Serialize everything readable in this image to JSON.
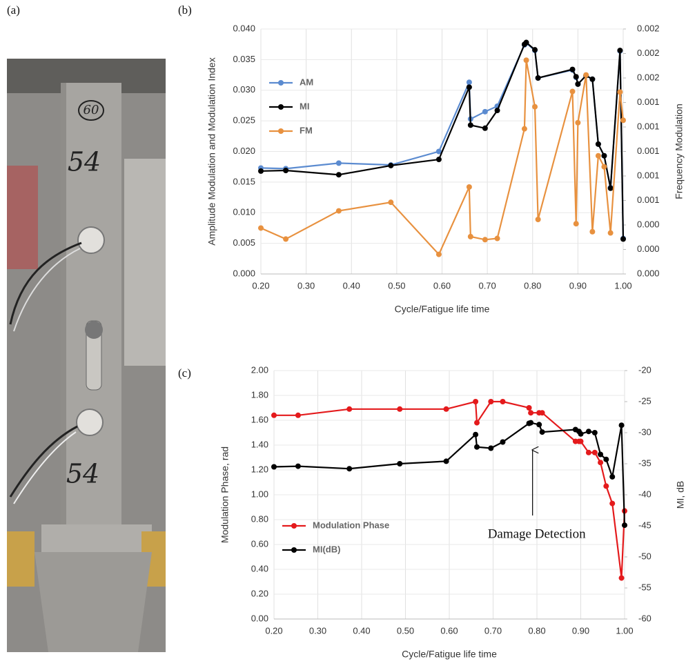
{
  "figure": {
    "panel_labels": [
      "(a)",
      "(b)",
      "(c)"
    ],
    "photo_labels": [
      "60",
      "54",
      "54"
    ]
  },
  "chart_data": [
    {
      "type": "line",
      "x_label": "Cycle/Fatigue life time",
      "y_label": "Amplitude Modulation and Modulation Index",
      "y2_label": "Frequency Modulation",
      "x": [
        0.2,
        0.255,
        0.372,
        0.487,
        0.593,
        0.66,
        0.663,
        0.695,
        0.722,
        0.782,
        0.786,
        0.805,
        0.812,
        0.888,
        0.896,
        0.9,
        0.918,
        0.932,
        0.945,
        0.958,
        0.972,
        0.993,
        1.0
      ],
      "series": [
        {
          "name": "AM",
          "color": "#5b8bd0",
          "values": [
            0.0173,
            0.0172,
            0.0181,
            0.0178,
            0.02,
            0.0313,
            0.0253,
            0.0265,
            0.0274,
            0.0374,
            0.0377,
            0.0365,
            0.032,
            0.0333,
            0.0321,
            0.031,
            0.0324,
            0.0318,
            0.0212,
            0.0193,
            0.0141,
            0.0364,
            0.0058
          ]
        },
        {
          "name": "MI",
          "color": "#000000",
          "values": [
            0.0168,
            0.0169,
            0.0162,
            0.0177,
            0.0187,
            0.0305,
            0.0243,
            0.0238,
            0.0267,
            0.0375,
            0.0378,
            0.0366,
            0.032,
            0.0334,
            0.0322,
            0.031,
            0.0324,
            0.0318,
            0.0212,
            0.0193,
            0.014,
            0.0365,
            0.0057
          ]
        },
        {
          "name": "FM",
          "color": "#e8913f",
          "axis": "y2",
          "values": [
            0.000375,
            0.000285,
            0.000515,
            0.000585,
            0.00016,
            0.00071,
            0.000305,
            0.00028,
            0.00029,
            0.001185,
            0.001745,
            0.001365,
            0.000445,
            0.00149,
            0.00041,
            0.001235,
            0.001625,
            0.000345,
            0.000965,
            0.000875,
            0.000335,
            0.001485,
            0.001255
          ]
        }
      ],
      "xlim": [
        0.2,
        1.0
      ],
      "xticks": [
        {
          "value": 0.2,
          "label": "0.20"
        },
        {
          "value": 0.3,
          "label": "0.30"
        },
        {
          "value": 0.4,
          "label": "0.40"
        },
        {
          "value": 0.5,
          "label": "0.50"
        },
        {
          "value": 0.6,
          "label": "0.60"
        },
        {
          "value": 0.7,
          "label": "0.70"
        },
        {
          "value": 0.8,
          "label": "0.80"
        },
        {
          "value": 0.9,
          "label": "0.90"
        },
        {
          "value": 1.0,
          "label": "1.00"
        }
      ],
      "ylim": [
        0,
        0.04
      ],
      "yticks": [
        {
          "value": 0,
          "label": "0.000"
        },
        {
          "value": 0.005,
          "label": "0.005"
        },
        {
          "value": 0.01,
          "label": "0.010"
        },
        {
          "value": 0.015,
          "label": "0.015"
        },
        {
          "value": 0.02,
          "label": "0.020"
        },
        {
          "value": 0.025,
          "label": "0.025"
        },
        {
          "value": 0.03,
          "label": "0.030"
        },
        {
          "value": 0.035,
          "label": "0.035"
        },
        {
          "value": 0.04,
          "label": "0.040"
        }
      ],
      "y2lim": [
        0,
        0.002
      ],
      "y2ticks": [
        {
          "value": 0,
          "label": "0.000"
        },
        {
          "value": 0.0002,
          "label": "0.000"
        },
        {
          "value": 0.0004,
          "label": "0.000"
        },
        {
          "value": 0.0006,
          "label": "0.001"
        },
        {
          "value": 0.0008,
          "label": "0.001"
        },
        {
          "value": 0.001,
          "label": "0.001"
        },
        {
          "value": 0.0012,
          "label": "0.001"
        },
        {
          "value": 0.0014,
          "label": "0.001"
        },
        {
          "value": 0.0016,
          "label": "0.002"
        },
        {
          "value": 0.0018,
          "label": "0.002"
        },
        {
          "value": 0.002,
          "label": "0.002"
        }
      ],
      "grid": true,
      "legend": "upper left"
    },
    {
      "type": "line",
      "x_label": "Cycle/Fatigue life time",
      "y_label": "Modulation Phase, rad",
      "y2_label": "MI, dB",
      "annotation": "Damage Detection",
      "x": [
        0.2,
        0.255,
        0.372,
        0.487,
        0.593,
        0.66,
        0.663,
        0.695,
        0.722,
        0.782,
        0.786,
        0.805,
        0.812,
        0.888,
        0.896,
        0.9,
        0.918,
        0.932,
        0.945,
        0.958,
        0.972,
        0.993,
        1.0
      ],
      "series": [
        {
          "name": "Modulation Phase",
          "color": "#e41a1c",
          "values": [
            1.64,
            1.64,
            1.69,
            1.69,
            1.69,
            1.75,
            1.58,
            1.75,
            1.75,
            1.7,
            1.66,
            1.66,
            1.66,
            1.43,
            1.43,
            1.43,
            1.34,
            1.34,
            1.26,
            1.07,
            0.93,
            0.33,
            0.87
          ]
        },
        {
          "name": "MI(dB)",
          "color": "#000000",
          "axis": "y2",
          "values": [
            -35.5,
            -35.4,
            -35.8,
            -35.0,
            -34.6,
            -30.3,
            -32.3,
            -32.5,
            -31.5,
            -28.5,
            -28.4,
            -28.7,
            -29.9,
            -29.5,
            -29.8,
            -30.2,
            -29.8,
            -30.0,
            -33.5,
            -34.3,
            -37.1,
            -28.8,
            -44.9
          ]
        }
      ],
      "xlim": [
        0.2,
        1.0
      ],
      "xticks": [
        {
          "value": 0.2,
          "label": "0.20"
        },
        {
          "value": 0.3,
          "label": "0.30"
        },
        {
          "value": 0.4,
          "label": "0.40"
        },
        {
          "value": 0.5,
          "label": "0.50"
        },
        {
          "value": 0.6,
          "label": "0.60"
        },
        {
          "value": 0.7,
          "label": "0.70"
        },
        {
          "value": 0.8,
          "label": "0.80"
        },
        {
          "value": 0.9,
          "label": "0.90"
        },
        {
          "value": 1.0,
          "label": "1.00"
        }
      ],
      "ylim": [
        0,
        2
      ],
      "yticks": [
        {
          "value": 0,
          "label": "0.00"
        },
        {
          "value": 0.2,
          "label": "0.20"
        },
        {
          "value": 0.4,
          "label": "0.40"
        },
        {
          "value": 0.6,
          "label": "0.60"
        },
        {
          "value": 0.8,
          "label": "0.80"
        },
        {
          "value": 1.0,
          "label": "1.00"
        },
        {
          "value": 1.2,
          "label": "1.20"
        },
        {
          "value": 1.4,
          "label": "1.40"
        },
        {
          "value": 1.6,
          "label": "1.60"
        },
        {
          "value": 1.8,
          "label": "1.80"
        },
        {
          "value": 2.0,
          "label": "2.00"
        }
      ],
      "y2lim": [
        -60,
        -20
      ],
      "y2ticks": [
        -60,
        -55,
        -50,
        -45,
        -40,
        -35,
        -30,
        -25,
        -20
      ],
      "grid": true,
      "legend": "lower left"
    }
  ]
}
